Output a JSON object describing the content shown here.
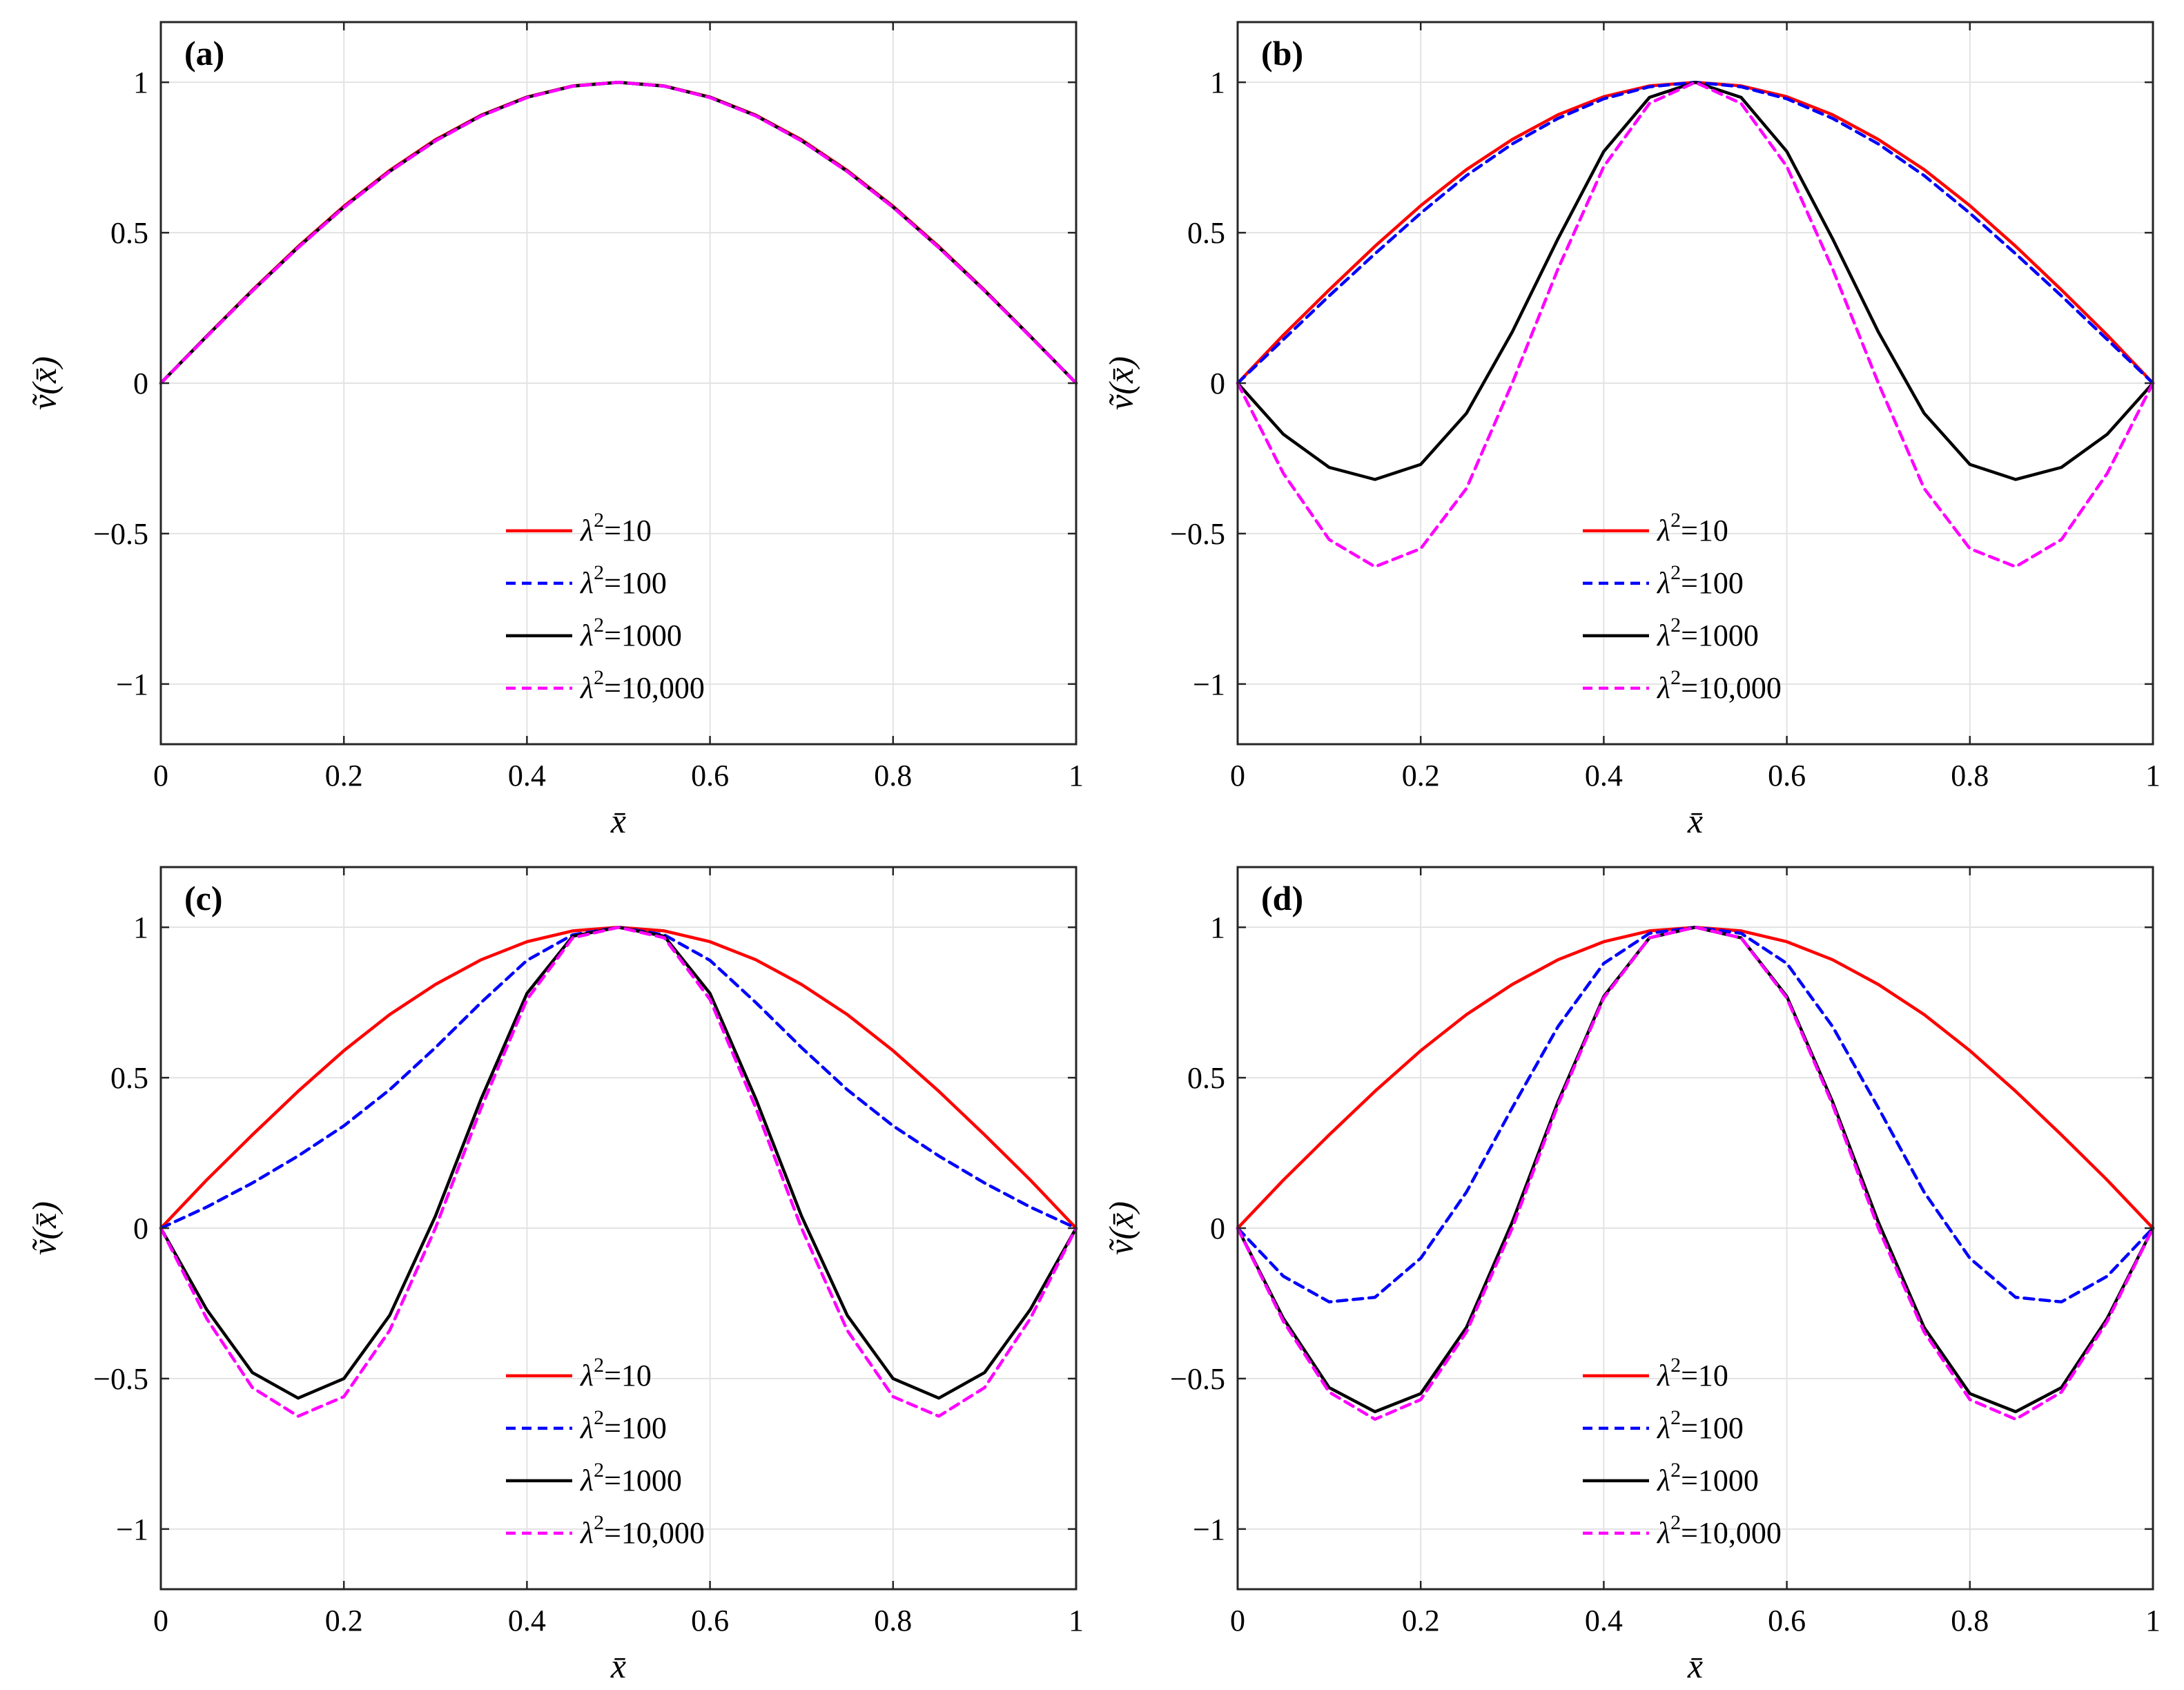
{
  "chart_data": [
    {
      "type": "line",
      "panel_label": "(a)",
      "xlabel": "x̄",
      "ylabel": "ṽ(x̄)",
      "xlim": [
        0,
        1
      ],
      "ylim": [
        -1.2,
        1.2
      ],
      "xticks": [
        0,
        0.2,
        0.4,
        0.6,
        0.8,
        1
      ],
      "xtick_labels": [
        "0",
        "0.2",
        "0.4",
        "0.6",
        "0.8",
        "1"
      ],
      "yticks": [
        -1,
        -0.5,
        0,
        0.5,
        1
      ],
      "ytick_labels": [
        "−1",
        "−0.5",
        "0",
        "0.5",
        "1"
      ],
      "grid": true,
      "legend_position": "bottom-center",
      "x": [
        0,
        0.05,
        0.1,
        0.15,
        0.2,
        0.25,
        0.3,
        0.35,
        0.4,
        0.45,
        0.5,
        0.55,
        0.6,
        0.65,
        0.7,
        0.75,
        0.8,
        0.85,
        0.9,
        0.95,
        1
      ],
      "series": [
        {
          "name": "λ²=10",
          "lambda_label": "λ",
          "sup": "2",
          "value_label": "=10",
          "color": "#ff0000",
          "dashed": false,
          "values": [
            0,
            0.156,
            0.309,
            0.454,
            0.588,
            0.707,
            0.809,
            0.891,
            0.951,
            0.988,
            1,
            0.988,
            0.951,
            0.891,
            0.809,
            0.707,
            0.588,
            0.454,
            0.309,
            0.156,
            0
          ]
        },
        {
          "name": "λ²=100",
          "lambda_label": "λ",
          "sup": "2",
          "value_label": "=100",
          "color": "#0000ff",
          "dashed": true,
          "values": [
            0,
            0.155,
            0.307,
            0.451,
            0.585,
            0.704,
            0.806,
            0.889,
            0.95,
            0.987,
            1,
            0.987,
            0.95,
            0.889,
            0.806,
            0.704,
            0.585,
            0.451,
            0.307,
            0.155,
            0
          ]
        },
        {
          "name": "λ²=1000",
          "lambda_label": "λ",
          "sup": "2",
          "value_label": "=1000",
          "color": "#000000",
          "dashed": false,
          "values": [
            0,
            0.155,
            0.307,
            0.451,
            0.585,
            0.704,
            0.806,
            0.889,
            0.95,
            0.987,
            1,
            0.987,
            0.95,
            0.889,
            0.806,
            0.704,
            0.585,
            0.451,
            0.307,
            0.155,
            0
          ]
        },
        {
          "name": "λ²=10,000",
          "lambda_label": "λ",
          "sup": "2",
          "value_label": "=10,000",
          "color": "#ff00ff",
          "dashed": true,
          "values": [
            0,
            0.154,
            0.306,
            0.45,
            0.584,
            0.703,
            0.805,
            0.888,
            0.949,
            0.987,
            1,
            0.987,
            0.949,
            0.888,
            0.805,
            0.703,
            0.584,
            0.45,
            0.306,
            0.154,
            0
          ]
        }
      ]
    },
    {
      "type": "line",
      "panel_label": "(b)",
      "xlabel": "x̄",
      "ylabel": "ṽ(x̄)",
      "xlim": [
        0,
        1
      ],
      "ylim": [
        -1.2,
        1.2
      ],
      "xticks": [
        0,
        0.2,
        0.4,
        0.6,
        0.8,
        1
      ],
      "xtick_labels": [
        "0",
        "0.2",
        "0.4",
        "0.6",
        "0.8",
        "1"
      ],
      "yticks": [
        -1,
        -0.5,
        0,
        0.5,
        1
      ],
      "ytick_labels": [
        "−1",
        "−0.5",
        "0",
        "0.5",
        "1"
      ],
      "grid": true,
      "legend_position": "bottom-center",
      "x": [
        0,
        0.05,
        0.1,
        0.15,
        0.2,
        0.25,
        0.3,
        0.35,
        0.4,
        0.45,
        0.5,
        0.55,
        0.6,
        0.65,
        0.7,
        0.75,
        0.8,
        0.85,
        0.9,
        0.95,
        1
      ],
      "series": [
        {
          "name": "λ²=10",
          "lambda_label": "λ",
          "sup": "2",
          "value_label": "=10",
          "color": "#ff0000",
          "dashed": false,
          "values": [
            0,
            0.16,
            0.31,
            0.455,
            0.59,
            0.71,
            0.81,
            0.892,
            0.952,
            0.988,
            1,
            0.988,
            0.952,
            0.892,
            0.81,
            0.71,
            0.59,
            0.455,
            0.31,
            0.16,
            0
          ]
        },
        {
          "name": "λ²=100",
          "lambda_label": "λ",
          "sup": "2",
          "value_label": "=100",
          "color": "#0000ff",
          "dashed": true,
          "values": [
            0,
            0.145,
            0.29,
            0.43,
            0.565,
            0.69,
            0.795,
            0.88,
            0.945,
            0.985,
            1,
            0.985,
            0.945,
            0.88,
            0.795,
            0.69,
            0.565,
            0.43,
            0.29,
            0.145,
            0
          ]
        },
        {
          "name": "λ²=1000",
          "lambda_label": "λ",
          "sup": "2",
          "value_label": "=1000",
          "color": "#000000",
          "dashed": false,
          "values": [
            0,
            -0.17,
            -0.28,
            -0.32,
            -0.27,
            -0.1,
            0.17,
            0.48,
            0.77,
            0.95,
            1,
            0.95,
            0.77,
            0.48,
            0.17,
            -0.1,
            -0.27,
            -0.32,
            -0.28,
            -0.17,
            0
          ]
        },
        {
          "name": "λ²=10,000",
          "lambda_label": "λ",
          "sup": "2",
          "value_label": "=10,000",
          "color": "#ff00ff",
          "dashed": true,
          "values": [
            0,
            -0.3,
            -0.52,
            -0.61,
            -0.55,
            -0.35,
            0.0,
            0.38,
            0.72,
            0.93,
            1,
            0.93,
            0.72,
            0.38,
            0.0,
            -0.35,
            -0.55,
            -0.61,
            -0.52,
            -0.3,
            0
          ]
        }
      ]
    },
    {
      "type": "line",
      "panel_label": "(c)",
      "xlabel": "x̄",
      "ylabel": "ṽ(x̄)",
      "xlim": [
        0,
        1
      ],
      "ylim": [
        -1.2,
        1.2
      ],
      "xticks": [
        0,
        0.2,
        0.4,
        0.6,
        0.8,
        1
      ],
      "xtick_labels": [
        "0",
        "0.2",
        "0.4",
        "0.6",
        "0.8",
        "1"
      ],
      "yticks": [
        -1,
        -0.5,
        0,
        0.5,
        1
      ],
      "ytick_labels": [
        "−1",
        "−0.5",
        "0",
        "0.5",
        "1"
      ],
      "grid": true,
      "legend_position": "bottom-center",
      "x": [
        0,
        0.05,
        0.1,
        0.15,
        0.2,
        0.25,
        0.3,
        0.35,
        0.4,
        0.45,
        0.5,
        0.55,
        0.6,
        0.65,
        0.7,
        0.75,
        0.8,
        0.85,
        0.9,
        0.95,
        1
      ],
      "series": [
        {
          "name": "λ²=10",
          "lambda_label": "λ",
          "sup": "2",
          "value_label": "=10",
          "color": "#ff0000",
          "dashed": false,
          "values": [
            0,
            0.16,
            0.31,
            0.455,
            0.59,
            0.71,
            0.81,
            0.892,
            0.952,
            0.988,
            1,
            0.988,
            0.952,
            0.892,
            0.81,
            0.71,
            0.59,
            0.455,
            0.31,
            0.16,
            0
          ]
        },
        {
          "name": "λ²=100",
          "lambda_label": "λ",
          "sup": "2",
          "value_label": "=100",
          "color": "#0000ff",
          "dashed": true,
          "values": [
            0,
            0.07,
            0.15,
            0.24,
            0.34,
            0.46,
            0.6,
            0.75,
            0.89,
            0.975,
            1,
            0.975,
            0.89,
            0.75,
            0.6,
            0.46,
            0.34,
            0.24,
            0.15,
            0.07,
            0
          ]
        },
        {
          "name": "λ²=1000",
          "lambda_label": "λ",
          "sup": "2",
          "value_label": "=1000",
          "color": "#000000",
          "dashed": false,
          "values": [
            0,
            -0.27,
            -0.48,
            -0.565,
            -0.5,
            -0.29,
            0.04,
            0.43,
            0.78,
            0.97,
            1,
            0.97,
            0.78,
            0.43,
            0.04,
            -0.29,
            -0.5,
            -0.565,
            -0.48,
            -0.27,
            0
          ]
        },
        {
          "name": "λ²=10,000",
          "lambda_label": "λ",
          "sup": "2",
          "value_label": "=10,000",
          "color": "#ff00ff",
          "dashed": true,
          "values": [
            0,
            -0.3,
            -0.53,
            -0.625,
            -0.56,
            -0.34,
            0.0,
            0.4,
            0.76,
            0.965,
            1,
            0.965,
            0.76,
            0.4,
            0.0,
            -0.34,
            -0.56,
            -0.625,
            -0.53,
            -0.3,
            0
          ]
        }
      ]
    },
    {
      "type": "line",
      "panel_label": "(d)",
      "xlabel": "x̄",
      "ylabel": "ṽ(x̄)",
      "xlim": [
        0,
        1
      ],
      "ylim": [
        -1.2,
        1.2
      ],
      "xticks": [
        0,
        0.2,
        0.4,
        0.6,
        0.8,
        1
      ],
      "xtick_labels": [
        "0",
        "0.2",
        "0.4",
        "0.6",
        "0.8",
        "1"
      ],
      "yticks": [
        -1,
        -0.5,
        0,
        0.5,
        1
      ],
      "ytick_labels": [
        "−1",
        "−0.5",
        "0",
        "0.5",
        "1"
      ],
      "grid": true,
      "legend_position": "bottom-center",
      "x": [
        0,
        0.05,
        0.1,
        0.15,
        0.2,
        0.25,
        0.3,
        0.35,
        0.4,
        0.45,
        0.5,
        0.55,
        0.6,
        0.65,
        0.7,
        0.75,
        0.8,
        0.85,
        0.9,
        0.95,
        1
      ],
      "series": [
        {
          "name": "λ²=10",
          "lambda_label": "λ",
          "sup": "2",
          "value_label": "=10",
          "color": "#ff0000",
          "dashed": false,
          "values": [
            0,
            0.16,
            0.31,
            0.455,
            0.59,
            0.71,
            0.81,
            0.892,
            0.952,
            0.988,
            1,
            0.988,
            0.952,
            0.892,
            0.81,
            0.71,
            0.59,
            0.455,
            0.31,
            0.16,
            0
          ]
        },
        {
          "name": "λ²=100",
          "lambda_label": "λ",
          "sup": "2",
          "value_label": "=100",
          "color": "#0000ff",
          "dashed": true,
          "values": [
            0,
            -0.16,
            -0.245,
            -0.23,
            -0.1,
            0.12,
            0.4,
            0.67,
            0.88,
            0.98,
            1,
            0.98,
            0.88,
            0.67,
            0.4,
            0.12,
            -0.1,
            -0.23,
            -0.245,
            -0.16,
            0
          ]
        },
        {
          "name": "λ²=1000",
          "lambda_label": "λ",
          "sup": "2",
          "value_label": "=1000",
          "color": "#000000",
          "dashed": false,
          "values": [
            0,
            -0.3,
            -0.53,
            -0.61,
            -0.55,
            -0.33,
            0.02,
            0.42,
            0.77,
            0.965,
            1,
            0.965,
            0.77,
            0.42,
            0.02,
            -0.33,
            -0.55,
            -0.61,
            -0.53,
            -0.3,
            0
          ]
        },
        {
          "name": "λ²=10,000",
          "lambda_label": "λ",
          "sup": "2",
          "value_label": "=10,000",
          "color": "#ff00ff",
          "dashed": true,
          "values": [
            0,
            -0.31,
            -0.545,
            -0.635,
            -0.57,
            -0.345,
            0.0,
            0.41,
            0.765,
            0.965,
            1,
            0.965,
            0.765,
            0.41,
            0.0,
            -0.345,
            -0.57,
            -0.635,
            -0.545,
            -0.31,
            0
          ]
        }
      ]
    }
  ]
}
